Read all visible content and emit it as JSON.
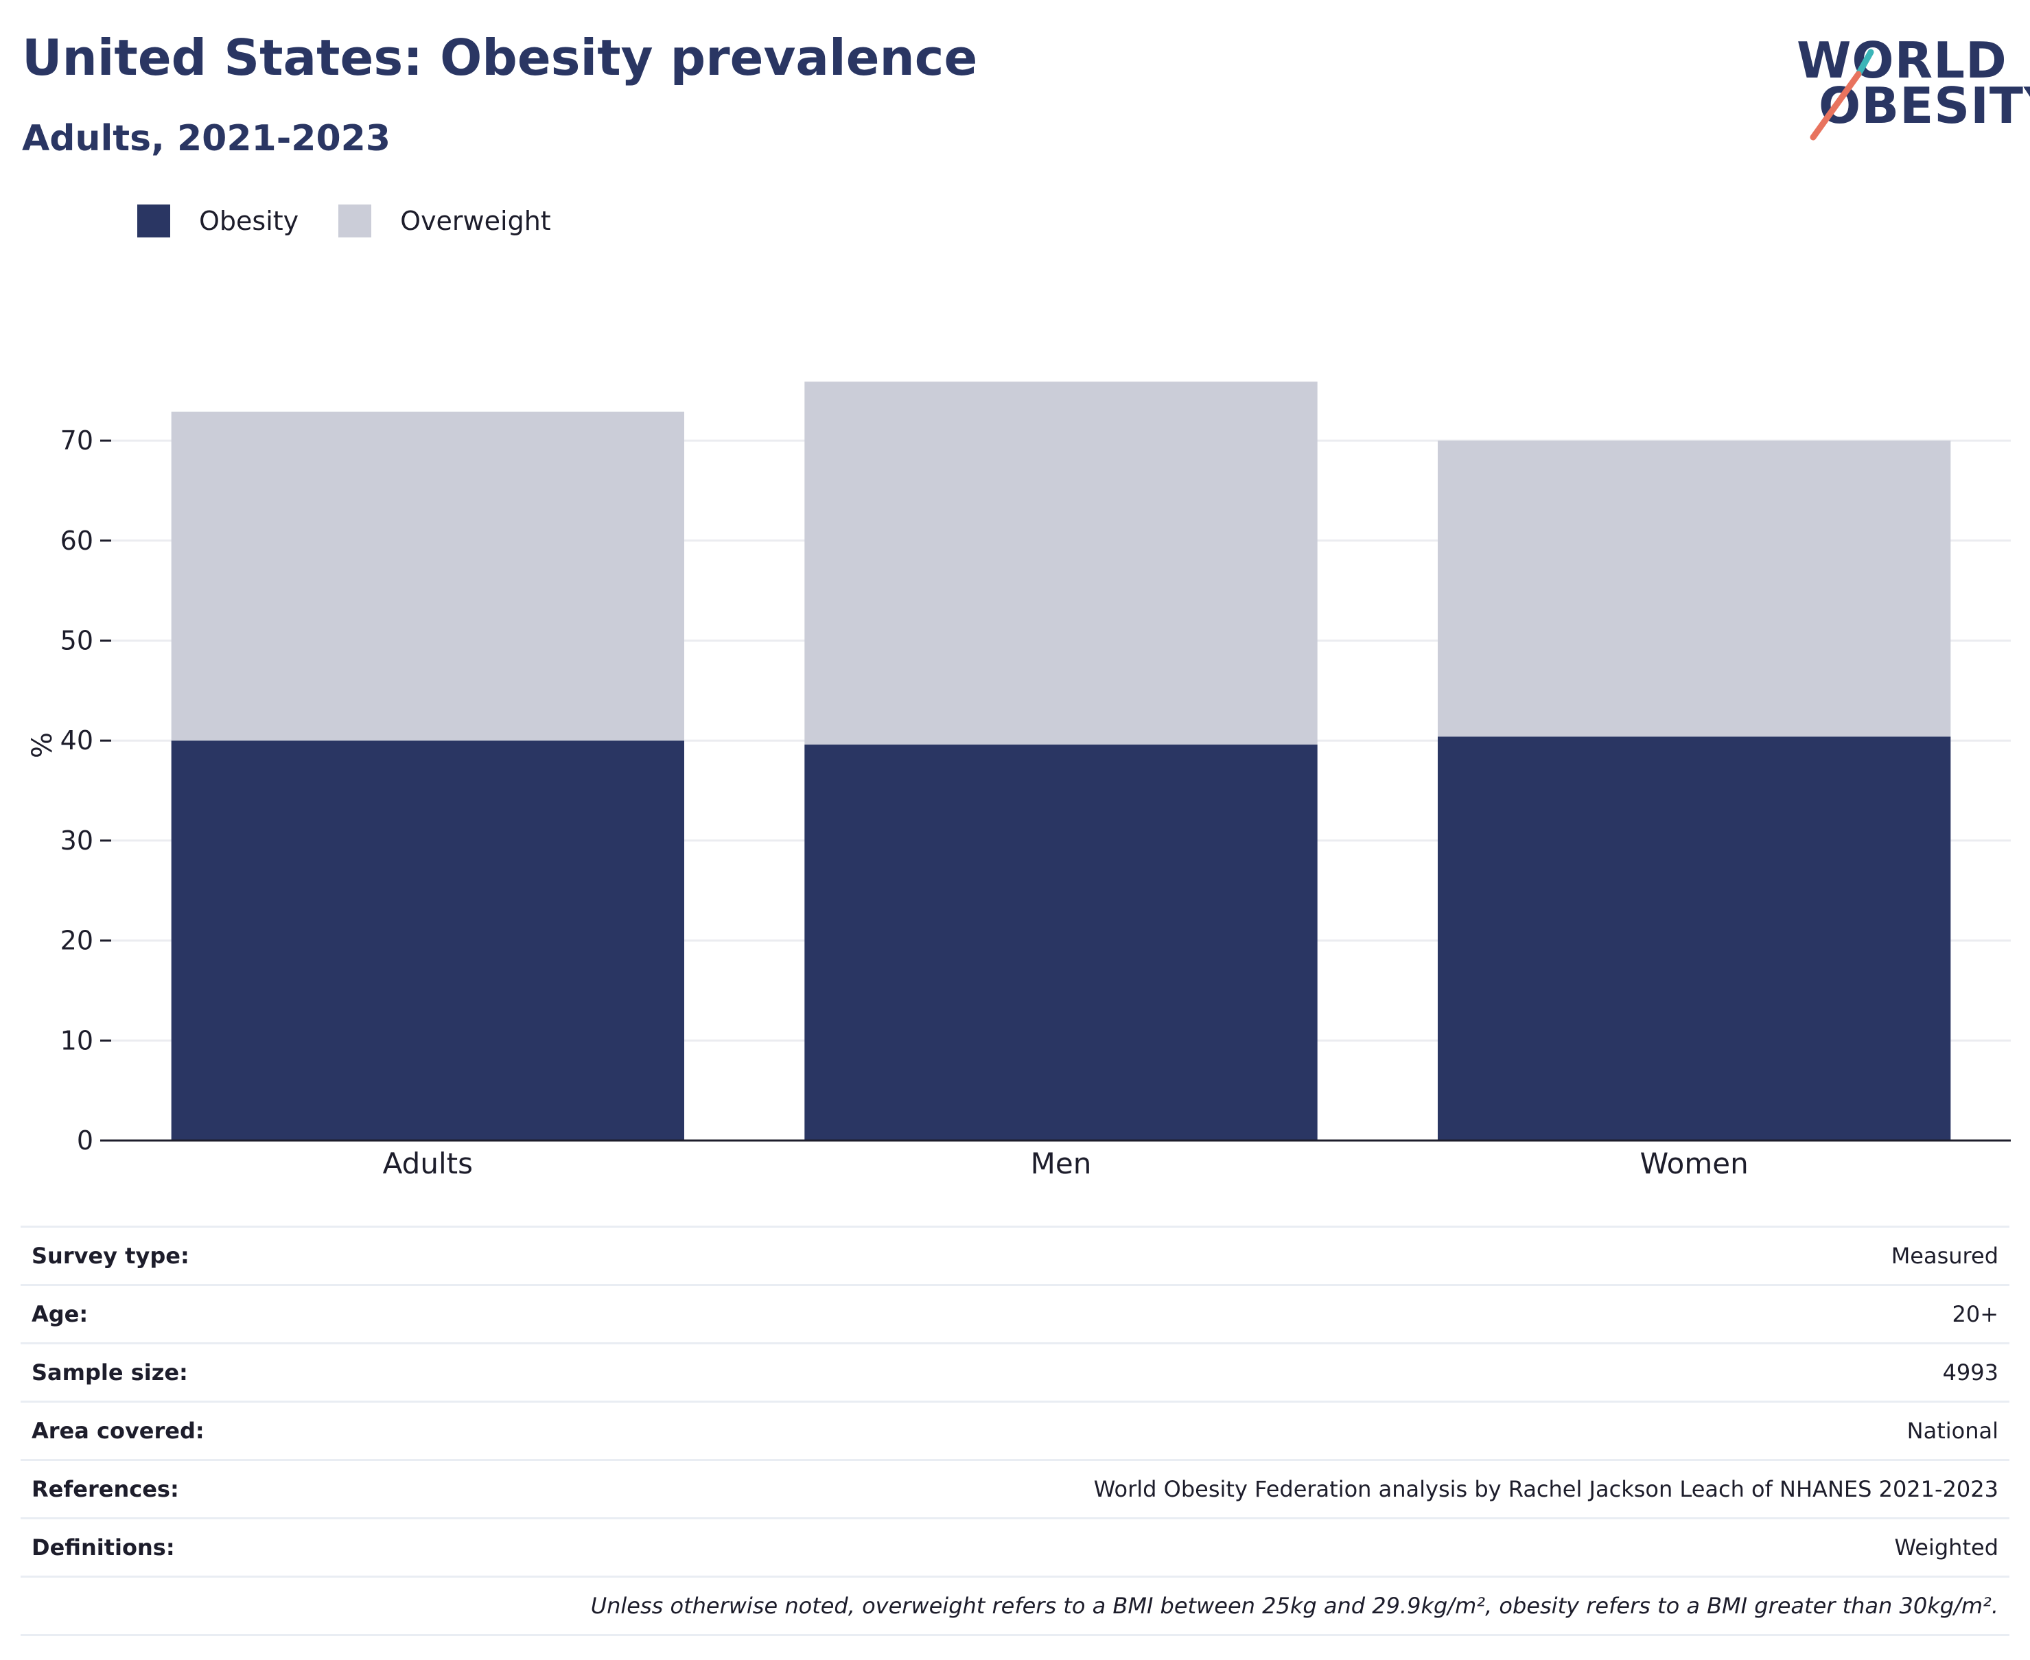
{
  "header": {
    "title": "United States: Obesity prevalence",
    "subtitle": "Adults, 2021-2023"
  },
  "logo": {
    "line1": "WORLD",
    "line2": "OBESITY",
    "accent_teal": "#3bb5b8",
    "accent_coral": "#e8735e"
  },
  "colors": {
    "obesity": "#2a3663",
    "overweight": "#cbcdd8",
    "grid": "#ebecf0",
    "axis": "#1d1d2b"
  },
  "chart_data": {
    "type": "bar",
    "stacked": true,
    "categories": [
      "Adults",
      "Men",
      "Women"
    ],
    "series": [
      {
        "name": "Obesity",
        "values": [
          40.0,
          39.6,
          40.4
        ]
      },
      {
        "name": "Overweight",
        "values": [
          32.9,
          36.3,
          29.6
        ]
      }
    ],
    "ylabel": "%",
    "xlabel": "",
    "ylim": [
      0,
      80
    ],
    "yticks": [
      0,
      10,
      20,
      30,
      40,
      50,
      60,
      70
    ],
    "grid": true,
    "legend_position": "top-left"
  },
  "metadata": {
    "rows": [
      {
        "label": "Survey type:",
        "value": "Measured"
      },
      {
        "label": "Age:",
        "value": "20+"
      },
      {
        "label": "Sample size:",
        "value": "4993"
      },
      {
        "label": "Area covered:",
        "value": "National"
      },
      {
        "label": "References:",
        "value": "World Obesity Federation analysis by Rachel Jackson Leach of NHANES 2021-2023"
      },
      {
        "label": "Definitions:",
        "value": "Weighted"
      }
    ],
    "note": "Unless otherwise noted, overweight refers to a BMI between 25kg and 29.9kg/m², obesity refers to a BMI greater than 30kg/m²."
  }
}
